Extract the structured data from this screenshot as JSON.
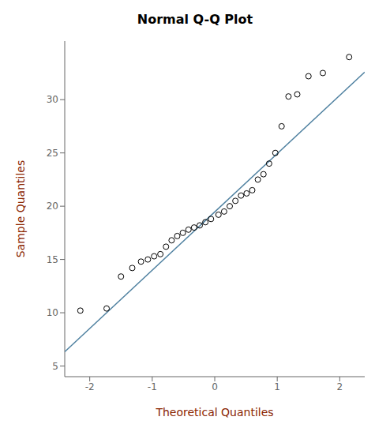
{
  "chart_data": {
    "type": "scatter",
    "title": "Normal Q-Q Plot",
    "x_label": "Theoretical Quantiles",
    "y_label": "Sample Quantiles",
    "label_color": "#8B2500",
    "xlim": [
      -2.4,
      2.4
    ],
    "ylim": [
      4.0,
      35.5
    ],
    "xticks": [
      -2,
      -1,
      0,
      1,
      2
    ],
    "yticks": [
      5,
      10,
      15,
      20,
      25,
      30
    ],
    "grid": false,
    "series": [
      {
        "type": "line",
        "color": "#4f81a0",
        "x": [
          -2.4,
          2.4
        ],
        "values": [
          6.3346,
          32.5941
        ]
      },
      {
        "type": "scatter",
        "color": "#000000",
        "marker": "circle",
        "x": [
          -2.15,
          -1.73,
          -1.5,
          -1.32,
          -1.18,
          -1.07,
          -0.97,
          -0.87,
          -0.78,
          -0.69,
          -0.6,
          -0.51,
          -0.42,
          -0.33,
          -0.24,
          -0.15,
          -0.06,
          0.06,
          0.15,
          0.24,
          0.33,
          0.42,
          0.51,
          0.6,
          0.69,
          0.78,
          0.87,
          0.97,
          1.07,
          1.18,
          1.32,
          1.5,
          1.73,
          2.15
        ],
        "values": [
          10.2,
          10.4,
          13.4,
          14.2,
          14.8,
          15.0,
          15.3,
          15.5,
          16.2,
          16.8,
          17.2,
          17.5,
          17.8,
          18.0,
          18.2,
          18.5,
          18.8,
          19.2,
          19.5,
          20.0,
          20.5,
          21.0,
          21.2,
          21.5,
          22.5,
          23.0,
          24.0,
          25.0,
          27.5,
          30.3,
          30.5,
          32.2,
          32.5,
          34.0
        ]
      }
    ]
  }
}
